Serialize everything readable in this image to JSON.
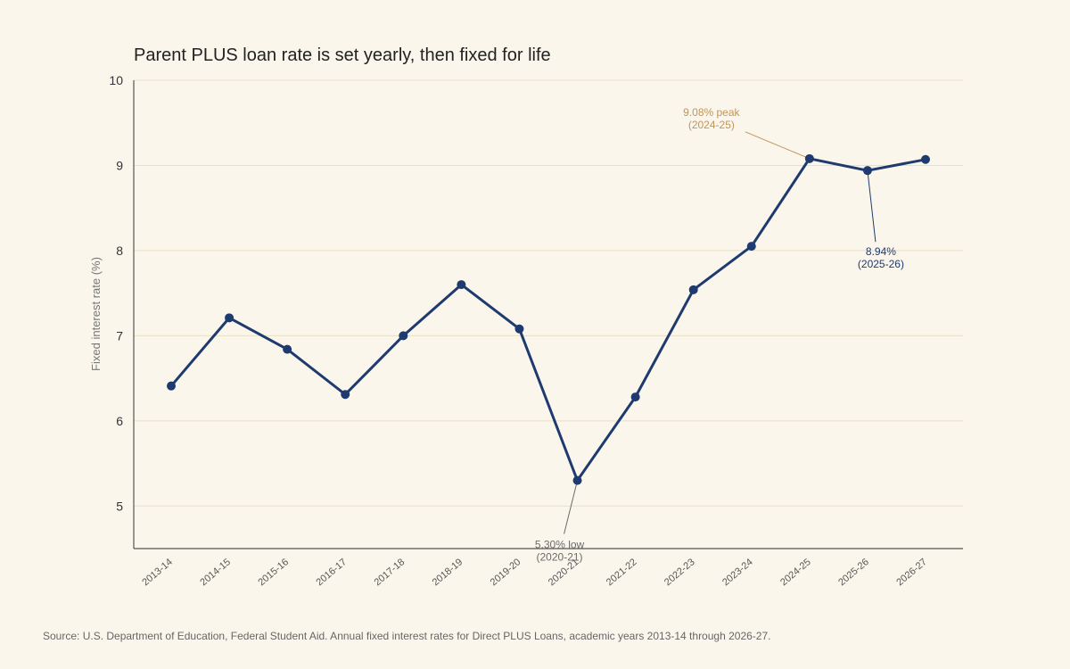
{
  "chart_data": {
    "type": "line",
    "title": "Parent PLUS loan rate is set yearly, then fixed for life",
    "xlabel": "",
    "ylabel": "Fixed interest rate (%)",
    "ylim": [
      4.5,
      10
    ],
    "yticks": [
      5,
      6,
      7,
      8,
      9,
      10
    ],
    "grid": true,
    "categories": [
      "2013-14",
      "2014-15",
      "2015-16",
      "2016-17",
      "2017-18",
      "2018-19",
      "2019-20",
      "2020-21",
      "2021-22",
      "2022-23",
      "2023-24",
      "2024-25",
      "2025-26",
      "2026-27"
    ],
    "series": [
      {
        "values": [
          6.41,
          7.21,
          6.84,
          6.31,
          7.0,
          7.6,
          7.08,
          5.3,
          6.28,
          7.54,
          8.05,
          9.08,
          8.94,
          9.07
        ]
      }
    ],
    "colors": {
      "line": "#1f3a6e",
      "peak": "#c0955a",
      "low": "#6b6b6b",
      "grid": "#e8e0c6",
      "axis": "#555555"
    },
    "annotations": [
      {
        "index": 11,
        "lines": [
          "9.08% peak",
          "(2024-25)"
        ],
        "color": "#c0955a",
        "name": "peak-annotation"
      },
      {
        "index": 12,
        "lines": [
          "8.94%",
          "(2025-26)"
        ],
        "color": "#1f3a6e",
        "name": "latest-annotation"
      },
      {
        "index": 7,
        "lines": [
          "5.30% low",
          "(2020-21)"
        ],
        "color": "#6b6b6b",
        "name": "low-annotation"
      }
    ]
  },
  "source": "Source: U.S. Department of Education, Federal Student Aid. Annual fixed interest rates for Direct PLUS Loans, academic years 2013-14 through 2026-27."
}
